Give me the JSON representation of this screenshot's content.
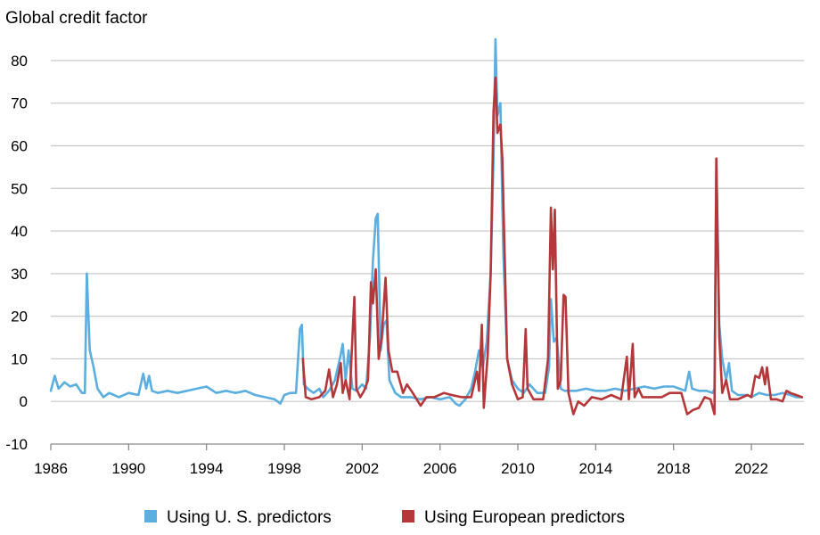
{
  "chart_data": {
    "type": "line",
    "title": "",
    "ylabel": "Global credit factor",
    "xlabel": "",
    "xlim": [
      1986,
      2024.7
    ],
    "ylim": [
      -10,
      85
    ],
    "x_ticks": [
      1986,
      1990,
      1994,
      1998,
      2002,
      2006,
      2010,
      2014,
      2018,
      2022
    ],
    "x_tick_labels": [
      "1986",
      "1990",
      "1994",
      "1998",
      "2002",
      "2006",
      "2010",
      "2014",
      "2018",
      "2022"
    ],
    "y_ticks": [
      -10,
      0,
      10,
      20,
      30,
      40,
      50,
      60,
      70,
      80
    ],
    "y_tick_labels": [
      "-10",
      "0",
      "10",
      "20",
      "30",
      "40",
      "50",
      "60",
      "70",
      "80"
    ],
    "grid": "horizontal",
    "legend_position": "bottom",
    "series": [
      {
        "name": "Using U. S. predictors",
        "color": "#5aaee0",
        "points": [
          [
            1986.0,
            2.5
          ],
          [
            1986.2,
            6.0
          ],
          [
            1986.4,
            3.0
          ],
          [
            1986.7,
            4.5
          ],
          [
            1987.0,
            3.5
          ],
          [
            1987.3,
            4.0
          ],
          [
            1987.6,
            2.0
          ],
          [
            1987.75,
            2.0
          ],
          [
            1987.85,
            30.0
          ],
          [
            1988.0,
            12.0
          ],
          [
            1988.2,
            8.0
          ],
          [
            1988.4,
            3.0
          ],
          [
            1988.7,
            1.0
          ],
          [
            1989.0,
            2.0
          ],
          [
            1989.5,
            1.0
          ],
          [
            1990.0,
            2.0
          ],
          [
            1990.5,
            1.5
          ],
          [
            1990.75,
            6.5
          ],
          [
            1990.9,
            3.0
          ],
          [
            1991.05,
            6.0
          ],
          [
            1991.2,
            2.5
          ],
          [
            1991.5,
            2.0
          ],
          [
            1992.0,
            2.5
          ],
          [
            1992.5,
            2.0
          ],
          [
            1993.0,
            2.5
          ],
          [
            1993.5,
            3.0
          ],
          [
            1994.0,
            3.5
          ],
          [
            1994.5,
            2.0
          ],
          [
            1995.0,
            2.5
          ],
          [
            1995.5,
            2.0
          ],
          [
            1996.0,
            2.5
          ],
          [
            1996.5,
            1.5
          ],
          [
            1997.0,
            1.0
          ],
          [
            1997.5,
            0.5
          ],
          [
            1997.8,
            -0.5
          ],
          [
            1998.0,
            1.5
          ],
          [
            1998.3,
            2.0
          ],
          [
            1998.6,
            2.0
          ],
          [
            1998.8,
            17.0
          ],
          [
            1998.9,
            18.0
          ],
          [
            1999.0,
            4.0
          ],
          [
            1999.2,
            3.0
          ],
          [
            1999.5,
            2.0
          ],
          [
            1999.8,
            3.0
          ],
          [
            2000.0,
            1.0
          ],
          [
            2000.3,
            2.5
          ],
          [
            2000.6,
            5.0
          ],
          [
            2000.9,
            11.0
          ],
          [
            2001.0,
            13.5
          ],
          [
            2001.15,
            5.0
          ],
          [
            2001.3,
            12.0
          ],
          [
            2001.5,
            3.0
          ],
          [
            2001.7,
            2.5
          ],
          [
            2002.0,
            4.0
          ],
          [
            2002.2,
            3.0
          ],
          [
            2002.4,
            15.0
          ],
          [
            2002.55,
            33.0
          ],
          [
            2002.7,
            43.0
          ],
          [
            2002.8,
            44.0
          ],
          [
            2002.95,
            12.0
          ],
          [
            2003.1,
            18.0
          ],
          [
            2003.25,
            19.0
          ],
          [
            2003.4,
            5.0
          ],
          [
            2003.7,
            2.0
          ],
          [
            2004.0,
            1.0
          ],
          [
            2004.5,
            1.0
          ],
          [
            2005.0,
            0.5
          ],
          [
            2005.5,
            1.0
          ],
          [
            2006.0,
            0.5
          ],
          [
            2006.5,
            1.0
          ],
          [
            2006.8,
            -0.5
          ],
          [
            2007.0,
            -1.0
          ],
          [
            2007.3,
            0.5
          ],
          [
            2007.6,
            3.0
          ],
          [
            2007.8,
            7.0
          ],
          [
            2008.0,
            12.0
          ],
          [
            2008.2,
            8.0
          ],
          [
            2008.4,
            14.0
          ],
          [
            2008.6,
            30.0
          ],
          [
            2008.75,
            57.0
          ],
          [
            2008.85,
            85.0
          ],
          [
            2008.95,
            67.0
          ],
          [
            2009.1,
            70.0
          ],
          [
            2009.25,
            35.0
          ],
          [
            2009.45,
            10.0
          ],
          [
            2009.7,
            5.0
          ],
          [
            2010.0,
            3.0
          ],
          [
            2010.3,
            2.0
          ],
          [
            2010.6,
            4.0
          ],
          [
            2011.0,
            2.0
          ],
          [
            2011.4,
            2.0
          ],
          [
            2011.6,
            8.0
          ],
          [
            2011.7,
            24.0
          ],
          [
            2011.85,
            14.0
          ],
          [
            2012.0,
            15.0
          ],
          [
            2012.2,
            3.0
          ],
          [
            2012.4,
            2.5
          ],
          [
            2013.0,
            2.5
          ],
          [
            2013.5,
            3.0
          ],
          [
            2014.0,
            2.5
          ],
          [
            2014.5,
            2.5
          ],
          [
            2015.0,
            3.0
          ],
          [
            2015.5,
            2.5
          ],
          [
            2016.0,
            3.0
          ],
          [
            2016.5,
            3.5
          ],
          [
            2017.0,
            3.0
          ],
          [
            2017.5,
            3.5
          ],
          [
            2018.0,
            3.5
          ],
          [
            2018.3,
            3.0
          ],
          [
            2018.6,
            2.5
          ],
          [
            2018.8,
            7.0
          ],
          [
            2018.95,
            3.0
          ],
          [
            2019.3,
            2.5
          ],
          [
            2019.7,
            2.5
          ],
          [
            2020.0,
            2.0
          ],
          [
            2020.1,
            3.0
          ],
          [
            2020.2,
            57.0
          ],
          [
            2020.35,
            18.0
          ],
          [
            2020.5,
            10.0
          ],
          [
            2020.7,
            5.0
          ],
          [
            2020.85,
            9.0
          ],
          [
            2021.0,
            2.5
          ],
          [
            2021.3,
            1.5
          ],
          [
            2021.8,
            1.5
          ],
          [
            2022.0,
            1.0
          ],
          [
            2022.4,
            2.0
          ],
          [
            2022.8,
            1.5
          ],
          [
            2023.2,
            1.5
          ],
          [
            2023.6,
            2.0
          ],
          [
            2024.0,
            1.5
          ],
          [
            2024.3,
            1.0
          ],
          [
            2024.6,
            1.0
          ]
        ]
      },
      {
        "name": "Using European predictors",
        "color": "#b5373a",
        "points": [
          [
            1998.95,
            10.0
          ],
          [
            1999.1,
            1.0
          ],
          [
            1999.4,
            0.5
          ],
          [
            1999.8,
            1.0
          ],
          [
            2000.1,
            2.5
          ],
          [
            2000.3,
            7.5
          ],
          [
            2000.5,
            1.0
          ],
          [
            2000.7,
            4.0
          ],
          [
            2000.9,
            9.0
          ],
          [
            2001.0,
            2.0
          ],
          [
            2001.15,
            5.0
          ],
          [
            2001.35,
            0.5
          ],
          [
            2001.55,
            20.0
          ],
          [
            2001.6,
            24.5
          ],
          [
            2001.7,
            3.0
          ],
          [
            2001.9,
            1.0
          ],
          [
            2002.1,
            2.5
          ],
          [
            2002.3,
            5.0
          ],
          [
            2002.45,
            28.0
          ],
          [
            2002.55,
            23.0
          ],
          [
            2002.7,
            31.0
          ],
          [
            2002.85,
            10.0
          ],
          [
            2003.0,
            15.0
          ],
          [
            2003.2,
            29.0
          ],
          [
            2003.35,
            12.0
          ],
          [
            2003.55,
            7.0
          ],
          [
            2003.8,
            7.0
          ],
          [
            2004.1,
            2.0
          ],
          [
            2004.3,
            4.0
          ],
          [
            2004.6,
            2.0
          ],
          [
            2005.0,
            -1.0
          ],
          [
            2005.3,
            1.0
          ],
          [
            2005.7,
            1.0
          ],
          [
            2006.2,
            2.0
          ],
          [
            2006.6,
            1.5
          ],
          [
            2007.1,
            1.0
          ],
          [
            2007.6,
            1.0
          ],
          [
            2007.9,
            7.0
          ],
          [
            2008.0,
            2.5
          ],
          [
            2008.15,
            18.0
          ],
          [
            2008.25,
            -1.5
          ],
          [
            2008.45,
            11.0
          ],
          [
            2008.6,
            30.0
          ],
          [
            2008.75,
            68.0
          ],
          [
            2008.85,
            76.0
          ],
          [
            2008.95,
            63.0
          ],
          [
            2009.1,
            65.0
          ],
          [
            2009.2,
            57.0
          ],
          [
            2009.45,
            10.0
          ],
          [
            2009.7,
            4.0
          ],
          [
            2010.0,
            0.5
          ],
          [
            2010.25,
            1.0
          ],
          [
            2010.4,
            17.0
          ],
          [
            2010.5,
            3.0
          ],
          [
            2010.8,
            0.5
          ],
          [
            2011.3,
            0.5
          ],
          [
            2011.55,
            10.0
          ],
          [
            2011.7,
            45.5
          ],
          [
            2011.8,
            31.0
          ],
          [
            2011.9,
            45.0
          ],
          [
            2012.05,
            3.0
          ],
          [
            2012.2,
            5.0
          ],
          [
            2012.35,
            25.0
          ],
          [
            2012.45,
            24.5
          ],
          [
            2012.6,
            2.0
          ],
          [
            2012.85,
            -3.0
          ],
          [
            2013.1,
            0.0
          ],
          [
            2013.4,
            -1.0
          ],
          [
            2013.8,
            1.0
          ],
          [
            2014.3,
            0.5
          ],
          [
            2014.8,
            1.5
          ],
          [
            2015.3,
            0.5
          ],
          [
            2015.6,
            10.5
          ],
          [
            2015.7,
            0.5
          ],
          [
            2015.9,
            13.5
          ],
          [
            2016.0,
            1.0
          ],
          [
            2016.2,
            3.0
          ],
          [
            2016.4,
            1.0
          ],
          [
            2016.9,
            1.0
          ],
          [
            2017.4,
            1.0
          ],
          [
            2017.8,
            2.0
          ],
          [
            2018.4,
            2.0
          ],
          [
            2018.7,
            -3.0
          ],
          [
            2019.0,
            -2.0
          ],
          [
            2019.3,
            -1.5
          ],
          [
            2019.6,
            1.0
          ],
          [
            2019.9,
            0.5
          ],
          [
            2020.1,
            -3.0
          ],
          [
            2020.2,
            57.0
          ],
          [
            2020.35,
            15.0
          ],
          [
            2020.5,
            2.0
          ],
          [
            2020.7,
            5.0
          ],
          [
            2020.9,
            0.5
          ],
          [
            2021.3,
            0.5
          ],
          [
            2021.8,
            1.5
          ],
          [
            2022.0,
            1.0
          ],
          [
            2022.2,
            6.0
          ],
          [
            2022.4,
            5.5
          ],
          [
            2022.55,
            8.0
          ],
          [
            2022.7,
            4.0
          ],
          [
            2022.8,
            8.0
          ],
          [
            2023.0,
            0.5
          ],
          [
            2023.3,
            0.5
          ],
          [
            2023.6,
            0.0
          ],
          [
            2023.8,
            2.5
          ],
          [
            2024.0,
            2.0
          ],
          [
            2024.3,
            1.5
          ],
          [
            2024.6,
            1.0
          ]
        ]
      }
    ]
  }
}
